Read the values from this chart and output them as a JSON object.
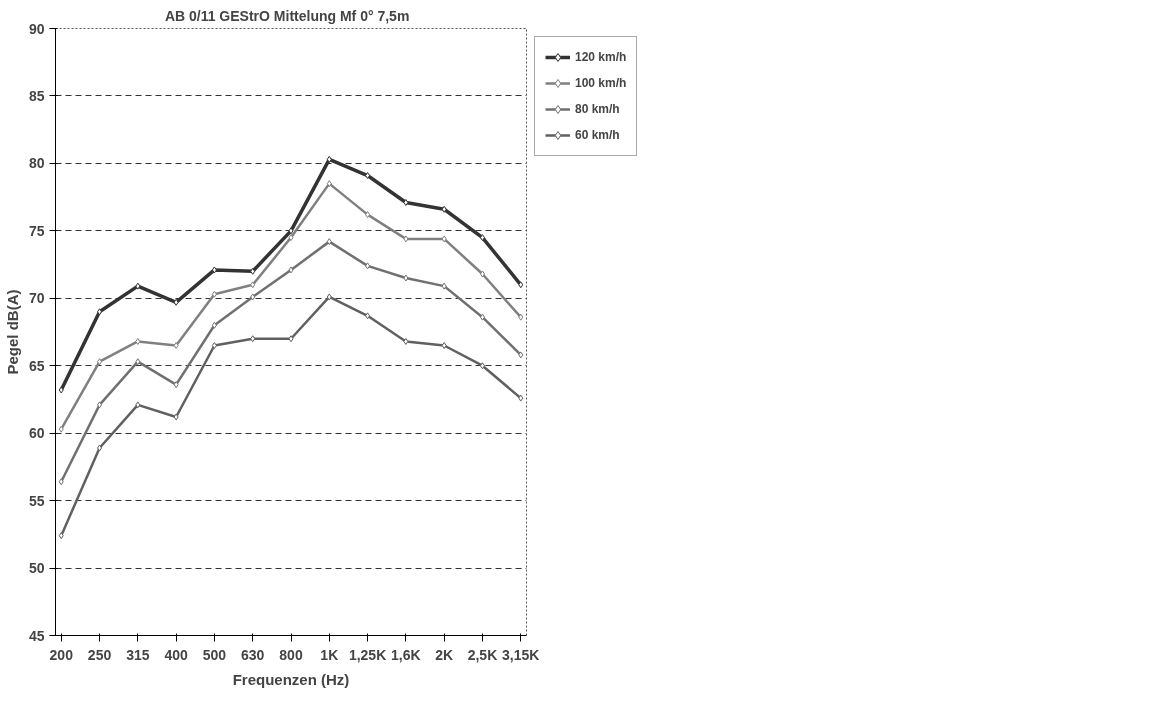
{
  "chart_data": {
    "type": "line",
    "title": "AB 0/11   GEStrO Mittelung Mf 0° 7,5m",
    "xlabel": "Frequenzen (Hz)",
    "ylabel": "Pegel dB(A)",
    "categories": [
      "200",
      "250",
      "315",
      "400",
      "500",
      "630",
      "800",
      "1K",
      "1,25K",
      "1,6K",
      "2K",
      "2,5K",
      "3,15K"
    ],
    "series": [
      {
        "name": "120 km/h",
        "color": "#333333",
        "values": [
          63.2,
          69,
          70.9,
          69.7,
          72.1,
          72,
          75,
          80.3,
          79.1,
          77.1,
          76.6,
          74.5,
          71
        ]
      },
      {
        "name": "100 km/h",
        "color": "#808080",
        "values": [
          60.3,
          65.3,
          66.8,
          66.5,
          70.3,
          71,
          74.5,
          78.5,
          76.2,
          74.4,
          74.4,
          71.8,
          68.6
        ]
      },
      {
        "name": "80 km/h",
        "color": "#707070",
        "values": [
          56.4,
          62.1,
          65.3,
          63.6,
          68,
          70.1,
          72.1,
          74.2,
          72.4,
          71.5,
          70.9,
          68.6,
          65.8
        ]
      },
      {
        "name": "60 km/h",
        "color": "#606060",
        "values": [
          52.4,
          58.9,
          62.1,
          61.2,
          66.5,
          67,
          67,
          70.1,
          68.7,
          66.8,
          66.5,
          65,
          62.6
        ]
      }
    ],
    "ylim": [
      45,
      90
    ],
    "yticks": [
      45,
      50,
      55,
      60,
      65,
      70,
      75,
      80,
      85,
      90
    ],
    "grid": "y",
    "legend": "top right",
    "marker": "diamond",
    "line_style": "solid"
  }
}
